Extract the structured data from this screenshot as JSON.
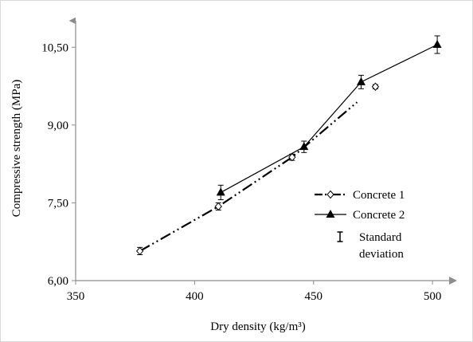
{
  "chart_data": {
    "type": "line",
    "xlabel": "Dry density (kg/m³)",
    "ylabel": "Compressive strength (MPa)",
    "xlim": [
      350,
      510
    ],
    "ylim": [
      6.0,
      10.95
    ],
    "x_ticks": [
      350,
      400,
      450,
      500
    ],
    "x_tick_labels": [
      "350",
      "400",
      "450",
      "500"
    ],
    "y_ticks": [
      6.0,
      7.5,
      9.0,
      10.5
    ],
    "y_tick_labels": [
      "6,00",
      "7,50",
      "9,00",
      "10,50"
    ],
    "grid": false,
    "legend_position": "right-center",
    "series": [
      {
        "name": "Concrete 1",
        "line_style": "dash-dot-dot",
        "marker": "open-diamond",
        "color": "#000000",
        "points": [
          {
            "x": 377,
            "y": 6.57,
            "err": 0.07
          },
          {
            "x": 410,
            "y": 7.43,
            "err": 0.07
          },
          {
            "x": 441,
            "y": 8.38,
            "err": 0.06
          },
          {
            "x": 476,
            "y": 9.74,
            "err": 0.04
          }
        ]
      },
      {
        "name": "Concrete 2",
        "line_style": "solid",
        "marker": "filled-triangle",
        "color": "#000000",
        "points": [
          {
            "x": 411,
            "y": 7.7,
            "err": 0.14
          },
          {
            "x": 446,
            "y": 8.58,
            "err": 0.11
          },
          {
            "x": 470,
            "y": 9.83,
            "err": 0.13
          },
          {
            "x": 502,
            "y": 10.55,
            "err": 0.17
          }
        ]
      }
    ],
    "legend": {
      "items": [
        {
          "label": "Concrete 1",
          "symbol": "open-diamond",
          "line_style": "dash-dot-dot"
        },
        {
          "label": "Concrete 2",
          "symbol": "filled-triangle",
          "line_style": "solid"
        },
        {
          "label_lines": [
            "Standard",
            "deviation"
          ],
          "symbol": "error-bar"
        }
      ]
    }
  }
}
